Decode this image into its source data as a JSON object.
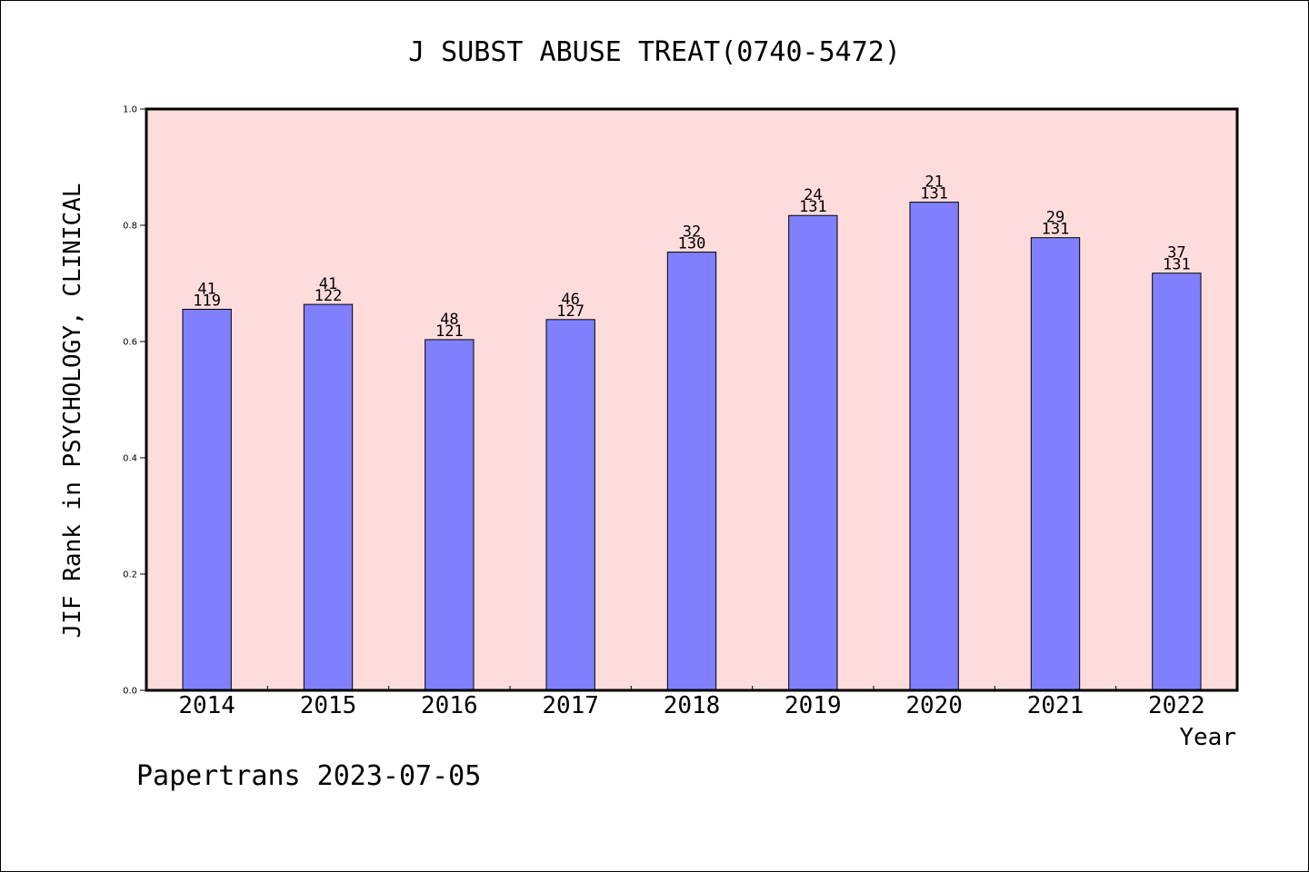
{
  "chart_data": {
    "type": "bar",
    "title": "J SUBST ABUSE TREAT(0740-5472)",
    "xlabel": "Year",
    "ylabel": "JIF Rank in PSYCHOLOGY, CLINICAL",
    "ylim": [
      0,
      1
    ],
    "yticks": [
      "0.0",
      "0.2",
      "0.4",
      "0.6",
      "0.8",
      "1.0"
    ],
    "categories": [
      "2014",
      "2015",
      "2016",
      "2017",
      "2018",
      "2019",
      "2020",
      "2021",
      "2022"
    ],
    "values": [
      0.6555,
      0.6639,
      0.6033,
      0.6378,
      0.7538,
      0.8168,
      0.8397,
      0.7786,
      0.7176
    ],
    "rank_labels": [
      "41",
      "41",
      "48",
      "46",
      "32",
      "24",
      "21",
      "29",
      "37"
    ],
    "total_labels": [
      "119",
      "122",
      "121",
      "127",
      "130",
      "131",
      "131",
      "131",
      "131"
    ],
    "bar_color": "#8080ff",
    "plot_background": "#ffdcdc",
    "grid": false,
    "legend": "none"
  },
  "footer": "Papertrans 2023-07-05"
}
